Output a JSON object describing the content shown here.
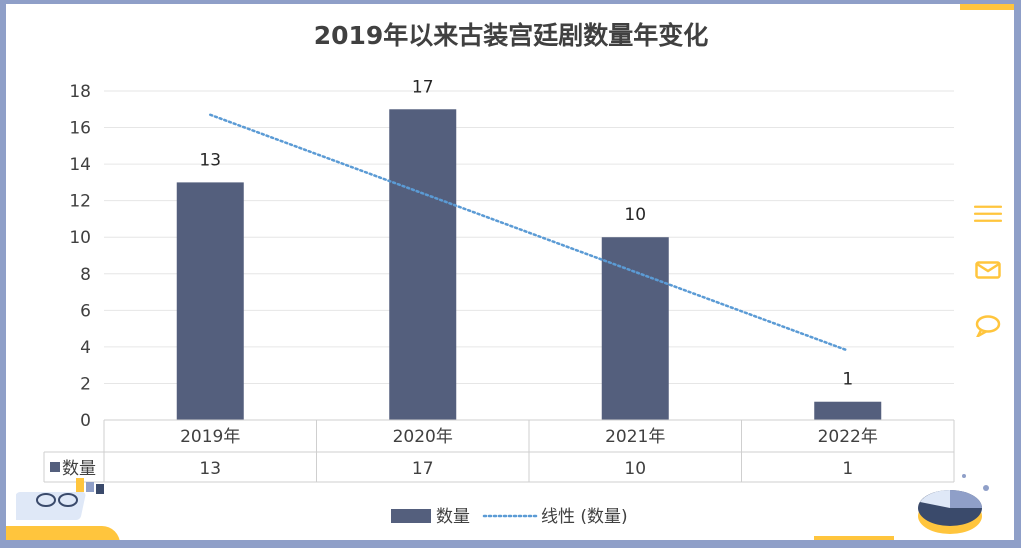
{
  "chart_data": {
    "type": "bar",
    "title": "2019年以来古装宫廷剧数量年变化",
    "categories": [
      "2019年",
      "2020年",
      "2021年",
      "2022年"
    ],
    "series": [
      {
        "name": "数量",
        "values": [
          13,
          17,
          10,
          1
        ],
        "color": "#545f7d"
      }
    ],
    "trendline": {
      "name": "线性 (数量)",
      "start": 16.7,
      "end": 3.8,
      "color": "#5b9bd5",
      "style": "dotted"
    },
    "ylim": [
      0,
      18
    ],
    "yticks": [
      0,
      2,
      4,
      6,
      8,
      10,
      12,
      14,
      16,
      18
    ],
    "grid": true,
    "data_labels": true,
    "data_table": true,
    "legend_position": "bottom"
  },
  "side_icons": [
    "menu-icon",
    "mail-icon",
    "chat-icon"
  ],
  "colors": {
    "bar": "#545f7d",
    "trend": "#5b9bd5",
    "accent": "#ffc53d",
    "border": "#8f9fc8"
  }
}
